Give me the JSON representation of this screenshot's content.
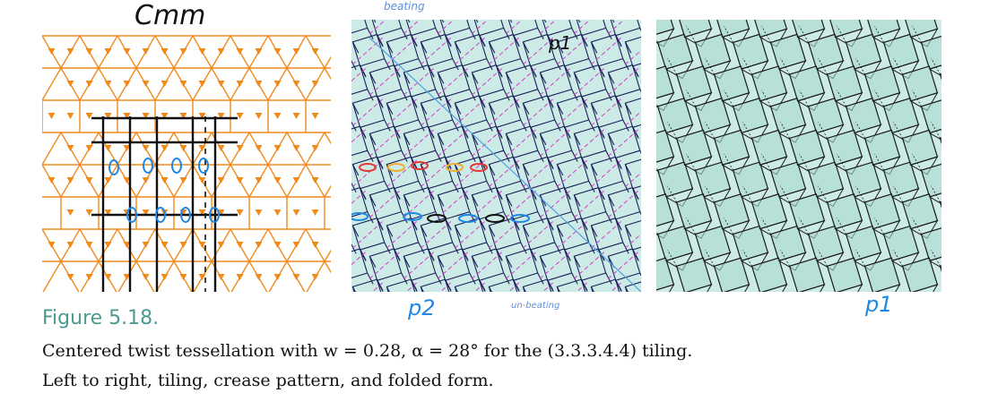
{
  "figure": {
    "label": "Figure 5.18.",
    "caption_line1": "Centered twist tessellation with w = 0.28, α = 28° for the (3.3.3.4.4) tiling.",
    "caption_line2": "Left to right, tiling, crease pattern, and folded form."
  },
  "annotations": {
    "cmm": "Cmm",
    "p2": "p2",
    "p1_top": "p1",
    "p1_right": "p1",
    "beating": "beating",
    "unbeating": "un-beating"
  },
  "colors": {
    "tiling": "#f08a1c",
    "panel_bg": "#cdebe6",
    "crease_mountain": "#1b1f5a",
    "crease_valley": "#d63cc8",
    "folded_line": "#1a1a1a",
    "handwriting_blue": "#1e88e5",
    "figure_label": "#4a9a8e"
  }
}
